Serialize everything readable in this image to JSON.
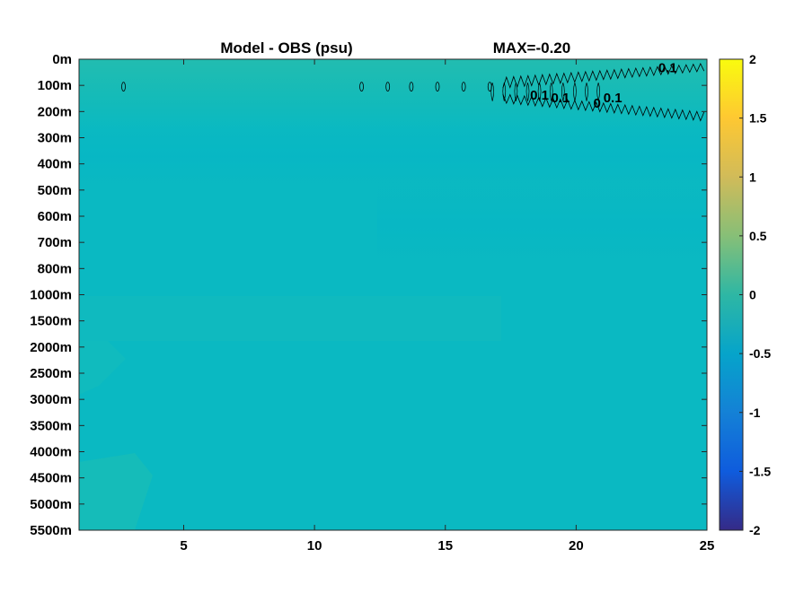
{
  "chart_data": {
    "type": "heatmap",
    "title": "Model - OBS (psu)",
    "max_label": "MAX=-0.20",
    "colormap": "parula",
    "xlim": [
      1,
      25
    ],
    "x_ticks": [
      {
        "value": 5,
        "label": "5"
      },
      {
        "value": 10,
        "label": "10"
      },
      {
        "value": 15,
        "label": "15"
      },
      {
        "value": 20,
        "label": "20"
      },
      {
        "value": 25,
        "label": "25"
      }
    ],
    "y_ticks": [
      "0m",
      "100m",
      "200m",
      "300m",
      "400m",
      "500m",
      "600m",
      "700m",
      "800m",
      "1000m",
      "1500m",
      "2000m",
      "2500m",
      "3000m",
      "3500m",
      "4000m",
      "4500m",
      "5000m",
      "5500m"
    ],
    "colorbar": {
      "range": [
        -2,
        2
      ],
      "ticks": [
        {
          "value": 2,
          "label": "2"
        },
        {
          "value": 1.5,
          "label": "1.5"
        },
        {
          "value": 1,
          "label": "1"
        },
        {
          "value": 0.5,
          "label": "0.5"
        },
        {
          "value": 0,
          "label": "0"
        },
        {
          "value": -0.5,
          "label": "-0.5"
        },
        {
          "value": -1,
          "label": "-1"
        },
        {
          "value": -1.5,
          "label": "-1.5"
        },
        {
          "value": -2,
          "label": "-2"
        }
      ]
    },
    "contour_labels": [
      {
        "text": "0.1",
        "x": 23.5,
        "level": 0.5
      },
      {
        "text": "0.1",
        "x": 18.6,
        "level": 1.55
      },
      {
        "text": "0.1",
        "x": 19.4,
        "level": 1.65
      },
      {
        "text": "0.1",
        "x": 21.4,
        "level": 1.65
      },
      {
        "text": "0",
        "x": 20.8,
        "level": 1.85
      }
    ],
    "background_value": -0.03,
    "colors": {
      "background": "#0ab9c2",
      "surface_layer": "#16bbb9",
      "deep_left_patch": "#14bcba"
    }
  }
}
